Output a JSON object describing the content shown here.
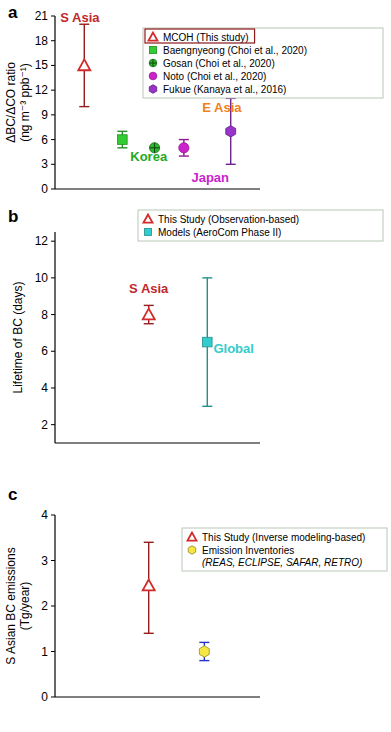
{
  "chart_data": [
    {
      "type": "scatter",
      "title": "a",
      "ylabel": [
        "ΔBC/ΔCO ratio",
        "(ng m⁻³ ppb⁻¹)"
      ],
      "xlim": [
        0,
        7
      ],
      "ylim": [
        0,
        21
      ],
      "yticks": [
        0,
        3,
        6,
        9,
        12,
        15,
        18,
        21
      ],
      "tick_labels": "y",
      "legend": "upper right",
      "series": [
        {
          "name": "MCOH (This study)",
          "color": "#d42a2a",
          "marker": "triangle-open",
          "x": [
            1
          ],
          "values": [
            15
          ],
          "error_minus": [
            5
          ],
          "error_plus": [
            5
          ]
        },
        {
          "name": "Baengnyeong (Choi et al., 2020)",
          "color": "#33cc33",
          "marker": "square",
          "x": [
            2.3
          ],
          "values": [
            6
          ],
          "error_minus": [
            1
          ],
          "error_plus": [
            1
          ]
        },
        {
          "name": "Gosan (Choi et al., 2020)",
          "color": "#2db82d",
          "marker": "circle-cross",
          "x": [
            3.4
          ],
          "values": [
            5
          ]
        },
        {
          "name": "Noto (Choi et al., 2020)",
          "color": "#cc22cc",
          "marker": "circle",
          "x": [
            4.4
          ],
          "values": [
            5
          ],
          "error_minus": [
            1
          ],
          "error_plus": [
            1
          ]
        },
        {
          "name": "Fukue (Kanaya et al., 2016)",
          "color": "#9933cc",
          "marker": "hexagon",
          "x": [
            6.0
          ],
          "values": [
            7
          ],
          "error_minus": [
            4
          ],
          "error_plus": [
            4
          ]
        }
      ],
      "annotations": [
        {
          "text": "S Asia",
          "color": "#c0282d",
          "x": 0.85,
          "y": 20.3
        },
        {
          "text": "E Asia",
          "color": "#f08020",
          "x": 5.7,
          "y": 9.4
        },
        {
          "text": "Korea",
          "color": "#22aa22",
          "x": 3.2,
          "y": 3.4
        },
        {
          "text": "Japan",
          "color": "#cc22cc",
          "x": 5.3,
          "y": 0.8
        }
      ]
    },
    {
      "type": "scatter",
      "title": "b",
      "ylabel": [
        "Lifetime of BC (days)"
      ],
      "xlim": [
        0,
        7
      ],
      "ylim": [
        1,
        12.5
      ],
      "yticks": [
        2,
        4,
        6,
        8,
        10,
        12
      ],
      "tick_labels": "y",
      "legend": "upper right",
      "series": [
        {
          "name": "This Study (Observation-based)",
          "color": "#d42a2a",
          "marker": "triangle-open",
          "x": [
            3.2
          ],
          "values": [
            8
          ],
          "error_minus": [
            0.5
          ],
          "error_plus": [
            0.5
          ]
        },
        {
          "name": "Models (AeroCom Phase II)",
          "color": "#33cccc",
          "marker": "square",
          "x": [
            5.2
          ],
          "values": [
            6.5
          ],
          "error_minus": [
            3.5
          ],
          "error_plus": [
            3.5
          ]
        }
      ],
      "annotations": [
        {
          "text": "S Asia",
          "color": "#c0282d",
          "x": 3.2,
          "y": 9.2
        },
        {
          "text": "Global",
          "color": "#33cccc",
          "x": 6.1,
          "y": 5.9
        }
      ]
    },
    {
      "type": "scatter",
      "title": "c",
      "ylabel": [
        "S Asian BC emissions",
        "(Tg/year)"
      ],
      "xlim": [
        0,
        7
      ],
      "ylim": [
        0,
        4
      ],
      "yticks": [
        0,
        1,
        2,
        3,
        4
      ],
      "tick_labels": "y",
      "legend": "upper right",
      "series": [
        {
          "name": "This Study (Inverse modeling-based)",
          "color": "#d42a2a",
          "marker": "triangle-open",
          "x": [
            3.2
          ],
          "values": [
            2.45
          ],
          "error_minus": [
            1.05
          ],
          "error_plus": [
            0.95
          ]
        },
        {
          "name": "Emission Inventories (REAS, ECLIPSE, SAFAR, RETRO)",
          "color": "#f5e642",
          "marker": "hexagon",
          "x": [
            5.1
          ],
          "values": [
            1.0
          ],
          "error_minus": [
            0.2
          ],
          "error_plus": [
            0.2
          ]
        }
      ]
    }
  ]
}
